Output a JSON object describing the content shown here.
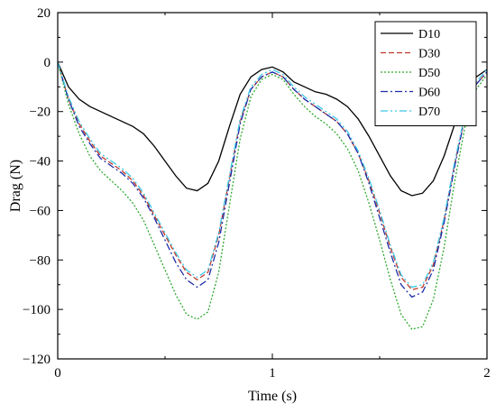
{
  "chart_data": {
    "type": "line",
    "title": "",
    "xlabel": "Time (s)",
    "ylabel": "Drag (N)",
    "xlim": [
      0,
      2
    ],
    "ylim": [
      -120,
      20
    ],
    "xticks": [
      0,
      1,
      2
    ],
    "xtick_labels": [
      "0",
      "1",
      "2"
    ],
    "yticks": [
      20,
      0,
      -20,
      -40,
      -60,
      -80,
      -100,
      -120
    ],
    "ytick_labels": [
      "20",
      "0",
      "−20",
      "−40",
      "−60",
      "−80",
      "−100",
      "−120"
    ],
    "grid": false,
    "legend_position": "top-right",
    "x": [
      0,
      0.05,
      0.1,
      0.15,
      0.2,
      0.25,
      0.3,
      0.35,
      0.4,
      0.45,
      0.5,
      0.55,
      0.6,
      0.65,
      0.7,
      0.75,
      0.8,
      0.85,
      0.9,
      0.95,
      1.0,
      1.05,
      1.1,
      1.15,
      1.2,
      1.25,
      1.3,
      1.35,
      1.4,
      1.45,
      1.5,
      1.55,
      1.6,
      1.65,
      1.7,
      1.75,
      1.8,
      1.85,
      1.9,
      1.95,
      2.0
    ],
    "series": [
      {
        "name": "D10",
        "color": "#000000",
        "dash": "solid",
        "values": [
          0,
          -10,
          -15,
          -18,
          -20,
          -22,
          -24,
          -26,
          -29,
          -34,
          -40,
          -46,
          -51,
          -52,
          -49,
          -40,
          -26,
          -13,
          -6,
          -3,
          -2,
          -4,
          -8,
          -10,
          -12,
          -13,
          -15,
          -18,
          -23,
          -30,
          -38,
          -46,
          -52,
          -54,
          -53,
          -48,
          -38,
          -25,
          -13,
          -6,
          -3
        ]
      },
      {
        "name": "D30",
        "color": "#c0392b",
        "dash": "dashed",
        "values": [
          0,
          -15,
          -25,
          -32,
          -38,
          -41,
          -44,
          -48,
          -54,
          -62,
          -70,
          -78,
          -85,
          -88,
          -85,
          -70,
          -47,
          -24,
          -11,
          -6,
          -4,
          -6,
          -11,
          -15,
          -18,
          -21,
          -24,
          -29,
          -37,
          -48,
          -61,
          -75,
          -87,
          -92,
          -91,
          -82,
          -64,
          -41,
          -21,
          -9,
          -4
        ]
      },
      {
        "name": "D50",
        "color": "#2eaa2e",
        "dash": "dotted",
        "values": [
          0,
          -17,
          -29,
          -38,
          -44,
          -48,
          -52,
          -57,
          -64,
          -74,
          -84,
          -94,
          -102,
          -104,
          -101,
          -85,
          -58,
          -31,
          -14,
          -7,
          -5,
          -7,
          -13,
          -18,
          -22,
          -25,
          -29,
          -35,
          -44,
          -57,
          -72,
          -88,
          -102,
          -108,
          -107,
          -96,
          -75,
          -48,
          -25,
          -11,
          -5
        ]
      },
      {
        "name": "D60",
        "color": "#1c2ea8",
        "dash": "dashdot",
        "values": [
          0,
          -15,
          -26,
          -33,
          -39,
          -42,
          -45,
          -49,
          -55,
          -63,
          -72,
          -81,
          -88,
          -91,
          -88,
          -73,
          -49,
          -25,
          -11,
          -6,
          -4,
          -6,
          -11,
          -15,
          -18,
          -21,
          -24,
          -29,
          -37,
          -49,
          -63,
          -77,
          -90,
          -95,
          -93,
          -84,
          -65,
          -42,
          -21,
          -9,
          -4
        ]
      },
      {
        "name": "D70",
        "color": "#3cc8e8",
        "dash": "dashdotdot",
        "values": [
          0,
          -14,
          -24,
          -31,
          -37,
          -40,
          -43,
          -47,
          -53,
          -61,
          -69,
          -77,
          -84,
          -87,
          -84,
          -69,
          -46,
          -23,
          -10,
          -5,
          -3,
          -5,
          -10,
          -14,
          -17,
          -20,
          -23,
          -28,
          -36,
          -47,
          -60,
          -74,
          -86,
          -91,
          -90,
          -81,
          -63,
          -40,
          -20,
          -8,
          -3
        ]
      }
    ]
  }
}
